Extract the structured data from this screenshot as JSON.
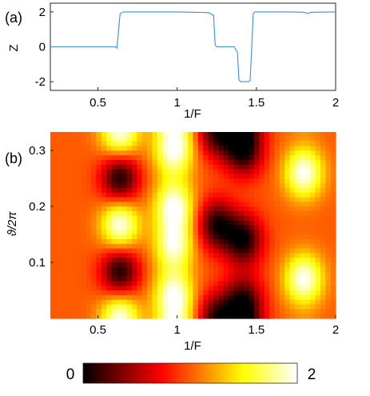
{
  "panels": {
    "a_label": "(a)",
    "b_label": "(b)"
  },
  "chart_data": [
    {
      "panel": "(a)",
      "type": "line",
      "xlabel": "1/F",
      "ylabel": "Z",
      "xlim": [
        0.2,
        2.0
      ],
      "ylim": [
        -2.5,
        2.5
      ],
      "xticks": [
        0.5,
        1,
        1.5,
        2
      ],
      "xtick_labels": [
        "0.5",
        "1",
        "1.5",
        "2"
      ],
      "yticks": [
        -2,
        0,
        2
      ],
      "ytick_labels": [
        "-2",
        "0",
        "2"
      ],
      "line_color": "#3b8fd4",
      "grid": false,
      "series": [
        {
          "x": [
            0.2,
            0.6,
            0.61,
            0.62,
            0.64,
            0.66,
            0.8,
            1.0,
            1.1,
            1.2,
            1.23,
            1.24,
            1.25,
            1.26,
            1.3,
            1.36,
            1.38,
            1.39,
            1.4,
            1.45,
            1.46,
            1.47,
            1.48,
            1.49,
            1.5,
            1.7,
            1.8,
            1.82,
            1.85,
            2.0
          ],
          "y": [
            0.0,
            0.0,
            0.0,
            -0.08,
            1.9,
            2.0,
            2.0,
            2.0,
            1.98,
            1.96,
            1.8,
            0.1,
            0.0,
            0.0,
            0.0,
            0.0,
            -0.3,
            -1.9,
            -2.0,
            -2.0,
            -1.95,
            -0.2,
            1.9,
            2.0,
            2.0,
            2.0,
            1.98,
            1.92,
            1.98,
            2.0
          ]
        }
      ]
    },
    {
      "panel": "(b)",
      "type": "heatmap",
      "xlabel": "1/F",
      "ylabel": "ϑ/2π",
      "xlim": [
        0.2,
        2.0
      ],
      "ylim": [
        0.0,
        0.333
      ],
      "xticks": [
        0.5,
        1,
        1.5,
        2
      ],
      "xtick_labels": [
        "0.5",
        "1",
        "1.5",
        "2"
      ],
      "yticks": [
        0.1,
        0.2,
        0.3
      ],
      "ytick_labels": [
        "0.1",
        "0.2",
        "0.3"
      ],
      "colormap": "hot",
      "colorbar": {
        "min": 0,
        "max": 2,
        "min_label": "0",
        "max_label": "2",
        "orientation": "horizontal",
        "location": "bottom"
      },
      "features": [
        {
          "x": 0.64,
          "y": 0.25,
          "value": 0.05
        },
        {
          "x": 0.64,
          "y": 0.083,
          "value": 0.05
        },
        {
          "x": 1.25,
          "y": 0.167,
          "value": 0.1
        },
        {
          "x": 1.25,
          "y": 0.333,
          "value": 0.15
        },
        {
          "x": 1.42,
          "y": 0.3,
          "value": 0.05
        },
        {
          "x": 1.42,
          "y": 0.14,
          "value": 0.05
        },
        {
          "x": 1.42,
          "y": 0.03,
          "value": 0.1
        },
        {
          "x": 0.64,
          "y": 0.167,
          "value": 2.0
        },
        {
          "x": 0.64,
          "y": 0.0,
          "value": 2.0
        },
        {
          "x": 0.98,
          "y": 0.3,
          "value": 2.0
        },
        {
          "x": 0.98,
          "y": 0.2,
          "value": 2.0
        },
        {
          "x": 0.98,
          "y": 0.13,
          "value": 1.9
        },
        {
          "x": 0.98,
          "y": 0.04,
          "value": 2.0
        },
        {
          "x": 1.8,
          "y": 0.26,
          "value": 2.0
        },
        {
          "x": 1.8,
          "y": 0.07,
          "value": 2.0
        }
      ]
    }
  ]
}
